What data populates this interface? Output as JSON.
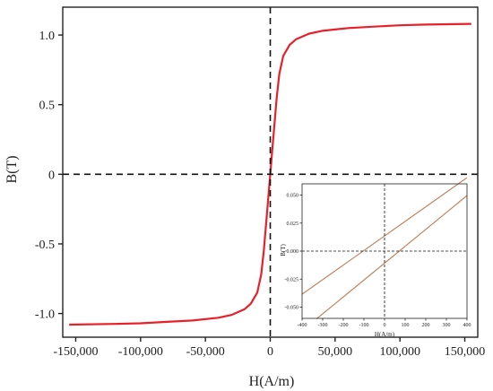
{
  "chart_data": [
    {
      "type": "line",
      "title": "",
      "xlabel": "H(A/m)",
      "ylabel": "B(T)",
      "xlim": [
        -160000,
        160000
      ],
      "ylim": [
        -1.17,
        1.2
      ],
      "xticks": [
        -150000,
        -100000,
        -50000,
        0,
        50000,
        100000,
        150000
      ],
      "xtick_labels": [
        "-150,000",
        "-100,000",
        "-50,000",
        "0",
        "50,000",
        "100,000",
        "150,000"
      ],
      "yticks": [
        -1.0,
        -0.5,
        0,
        0.5,
        1.0
      ],
      "ytick_labels": [
        "-1.0",
        "-0.5",
        "0",
        "0.5",
        "1.0"
      ],
      "grid": false,
      "reference_lines": {
        "x": 0,
        "y": 0,
        "style": "dashed"
      },
      "series": [
        {
          "color": "#e8202a",
          "x": [
            -155000,
            -120000,
            -100000,
            -80000,
            -60000,
            -40000,
            -30000,
            -20000,
            -15000,
            -10000,
            -7000,
            -5000,
            -3000,
            -1500,
            0,
            1500,
            3000,
            5000,
            7000,
            10000,
            15000,
            20000,
            30000,
            40000,
            60000,
            80000,
            100000,
            120000,
            155000
          ],
          "y": [
            -1.08,
            -1.075,
            -1.07,
            -1.06,
            -1.05,
            -1.03,
            -1.01,
            -0.97,
            -0.93,
            -0.85,
            -0.72,
            -0.55,
            -0.33,
            -0.17,
            0.0,
            0.17,
            0.33,
            0.55,
            0.72,
            0.85,
            0.93,
            0.97,
            1.01,
            1.03,
            1.05,
            1.06,
            1.07,
            1.075,
            1.08
          ]
        }
      ]
    },
    {
      "type": "line",
      "title": "",
      "xlabel": "H(A/m)",
      "ylabel": "B(T)",
      "xlim": [
        -400,
        400
      ],
      "ylim": [
        -0.06,
        0.06
      ],
      "xticks": [
        -400,
        -300,
        -200,
        -100,
        0,
        100,
        200,
        300,
        400
      ],
      "xtick_labels": [
        "-400",
        "-300",
        "-200",
        "-100",
        "0",
        "100",
        "200",
        "300",
        "400"
      ],
      "yticks": [
        -0.05,
        -0.025,
        0,
        0.025,
        0.05
      ],
      "ytick_labels": [
        "-0.050",
        "-0.025",
        "0.000",
        "0.025",
        "0.050"
      ],
      "grid": false,
      "reference_lines": {
        "x": 0,
        "y": 0,
        "style": "dashed"
      },
      "series": [
        {
          "color": "#c07a52",
          "x": [
            -400,
            400
          ],
          "y": [
            -0.0385,
            0.0655
          ]
        },
        {
          "color": "#c07a52",
          "x": [
            -330,
            400
          ],
          "y": [
            -0.0605,
            0.0495
          ]
        }
      ]
    }
  ]
}
